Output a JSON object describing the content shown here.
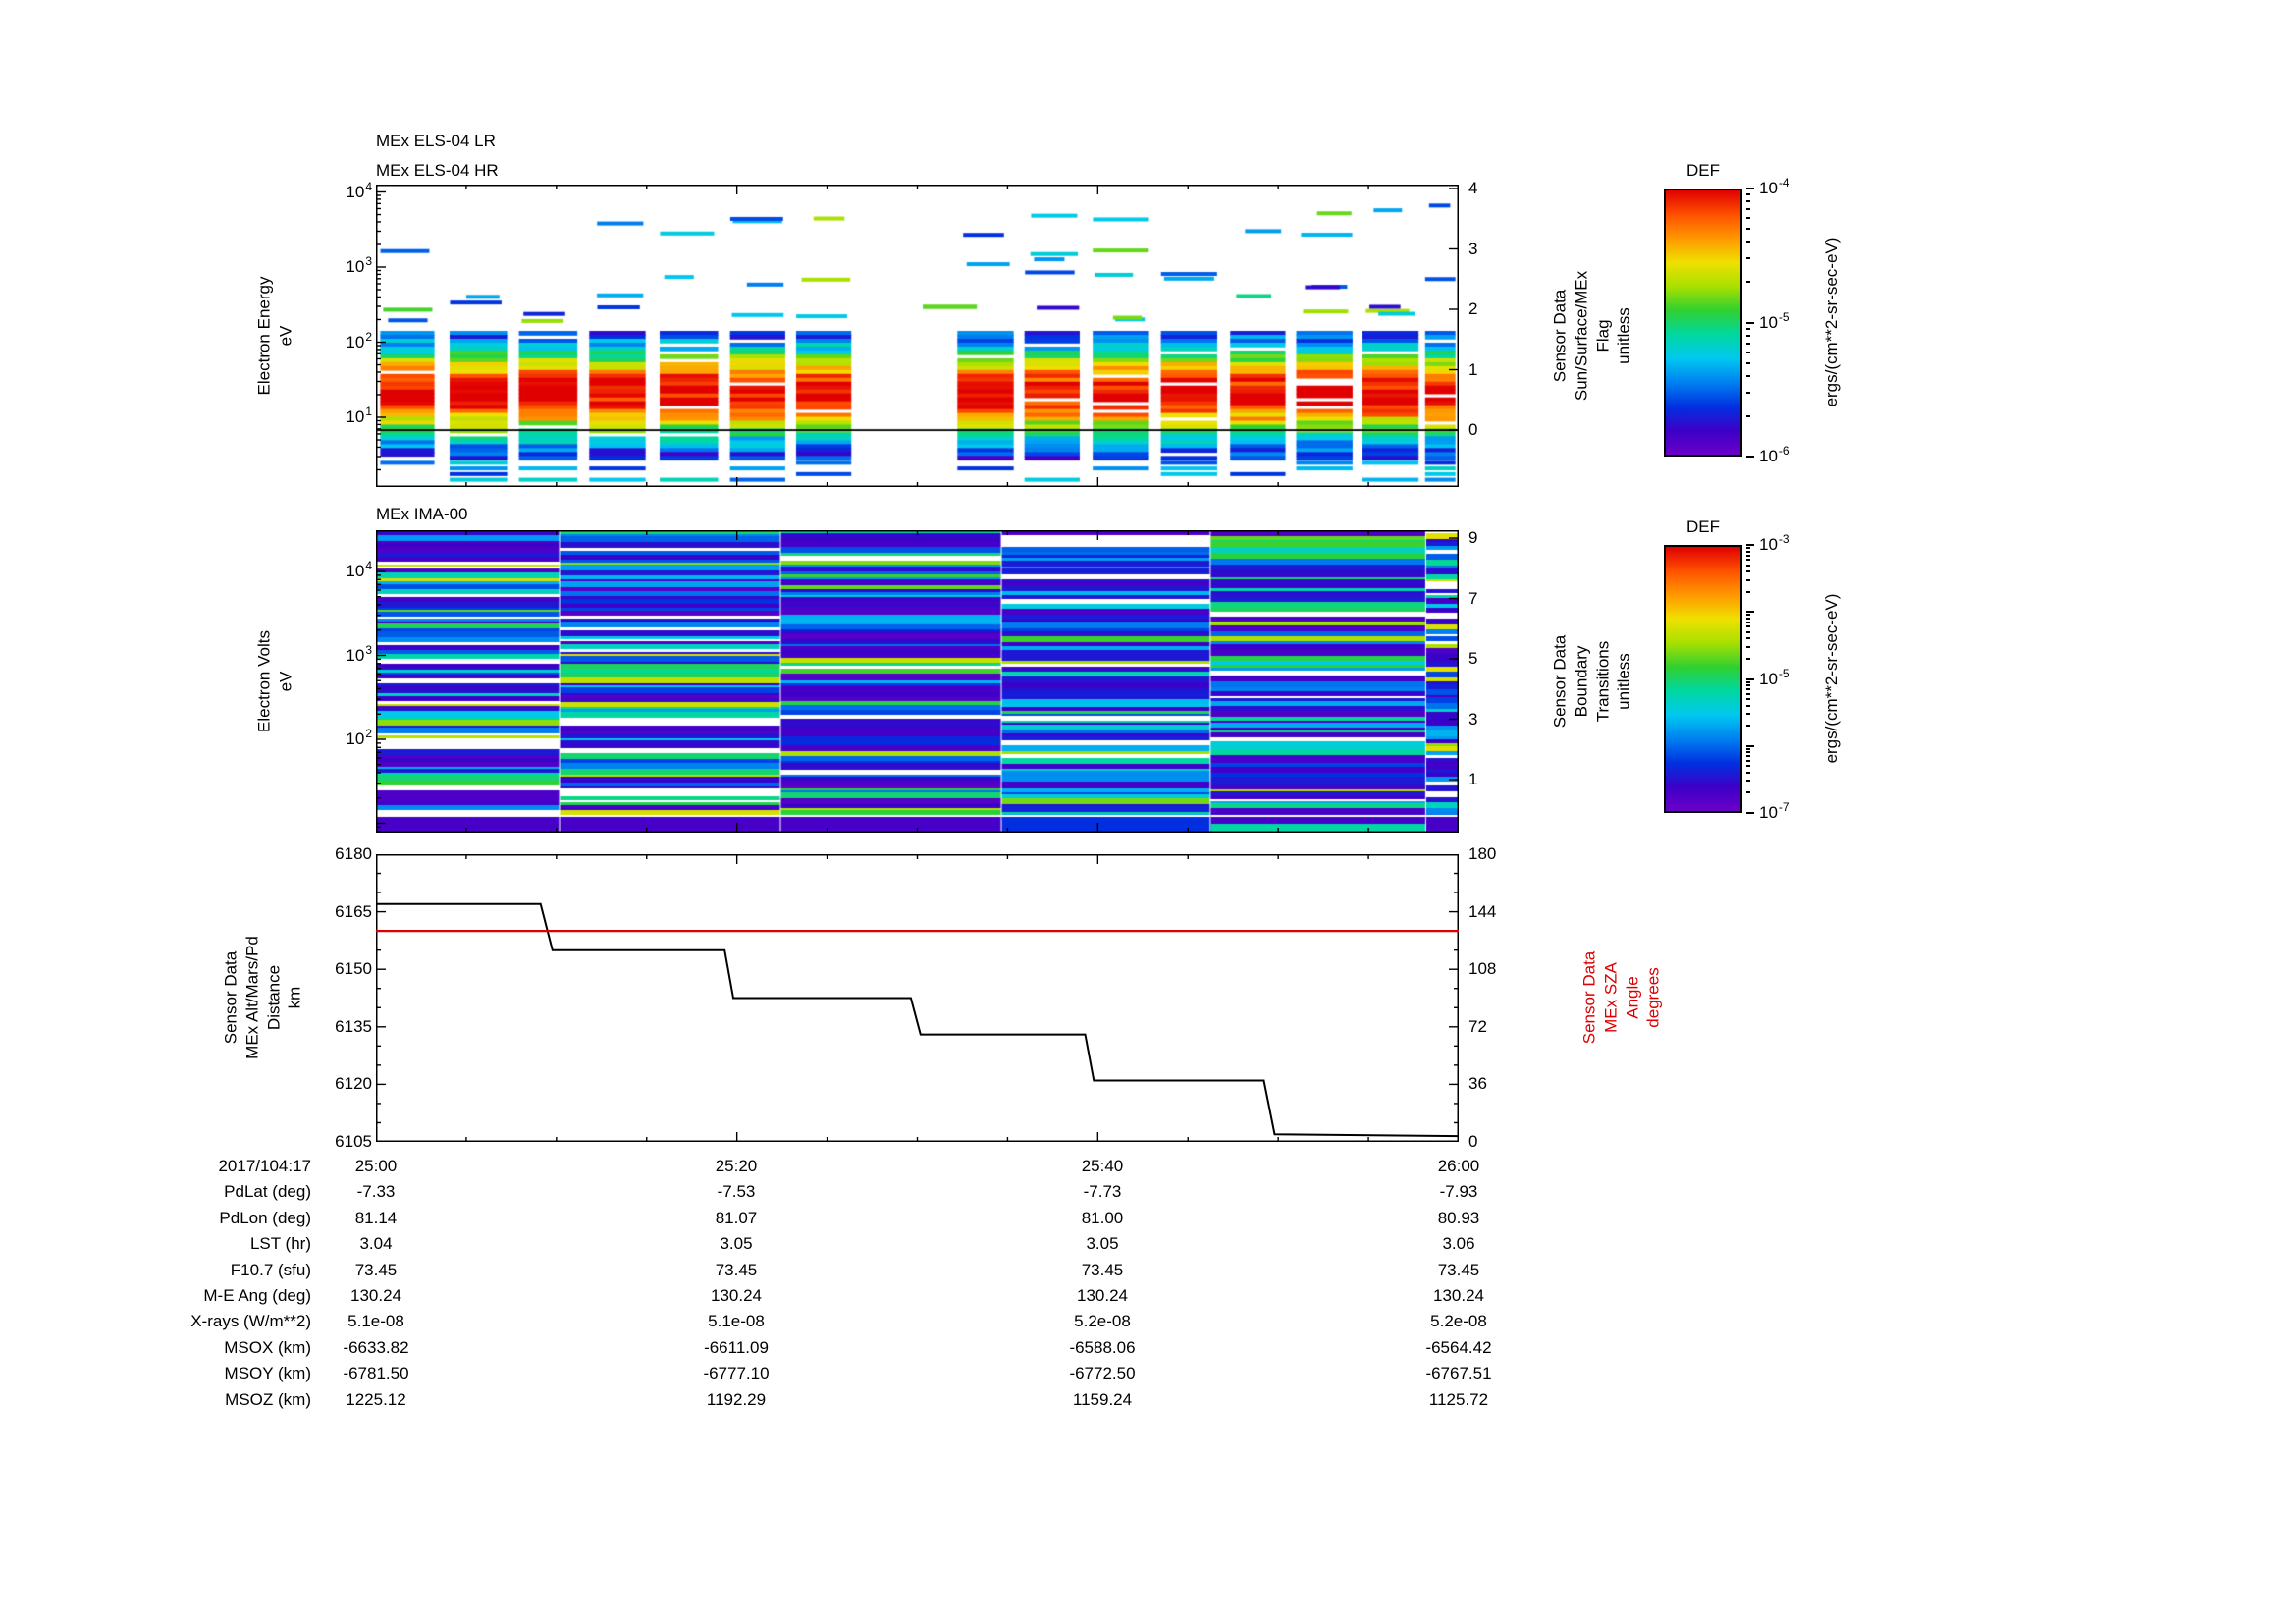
{
  "style": {
    "background": "#ffffff",
    "axis_color": "#000000",
    "sza_color": "#dd0000",
    "colormap_low_to_high": [
      "#6a00c8",
      "#3c00c8",
      "#0030e0",
      "#0080f0",
      "#00c8f0",
      "#00d8a0",
      "#30d030",
      "#a8e000",
      "#f0e000",
      "#ff9800",
      "#ff5000",
      "#e00000"
    ]
  },
  "panels": {
    "els": {
      "titles": [
        "MEx ELS-04 LR",
        "MEx ELS-04 HR"
      ],
      "left_label": "Electron Energy\neV",
      "right_label": "Sensor Data\nSun/Surface/MEx\nFlag\nunitless",
      "left_ticks": [
        "10^4",
        "10^3",
        "10^2",
        "10^1"
      ],
      "right_ticks": [
        "4",
        "3",
        "2",
        "1",
        "0"
      ]
    },
    "ima": {
      "title": "MEx IMA-00",
      "left_label": "Electron Volts\neV",
      "right_label": "Sensor Data\nBoundary\nTransitions\nunitless",
      "left_ticks": [
        "10^4",
        "10^3",
        "10^2"
      ],
      "right_ticks": [
        "9",
        "7",
        "5",
        "3",
        "1"
      ]
    },
    "line": {
      "left_label": "Sensor Data\nMEx Alt/Mars/Pd\nDistance\nkm",
      "right_label": "Sensor Data\nMEx SZA\nAngle\ndegrees",
      "left_ticks": [
        "6180",
        "6165",
        "6150",
        "6135",
        "6120",
        "6105"
      ],
      "right_ticks": [
        "180",
        "144",
        "108",
        "72",
        "36",
        "0"
      ]
    }
  },
  "colorbars": [
    {
      "title": "DEF",
      "ticks": [
        "10^-4",
        "10^-5",
        "10^-6"
      ],
      "units": "ergs/(cm**2-sr-sec-eV)"
    },
    {
      "title": "DEF",
      "ticks": [
        "10^-3",
        "10^-5",
        "10^-7"
      ],
      "units": "ergs/(cm**2-sr-sec-eV)"
    }
  ],
  "table": {
    "rows": [
      {
        "label": "2017/104:17",
        "values": [
          "25:00",
          "25:20",
          "25:40",
          "26:00"
        ]
      },
      {
        "label": "PdLat (deg)",
        "values": [
          "-7.33",
          "-7.53",
          "-7.73",
          "-7.93"
        ]
      },
      {
        "label": "PdLon (deg)",
        "values": [
          "81.14",
          "81.07",
          "81.00",
          "80.93"
        ]
      },
      {
        "label": "LST (hr)",
        "values": [
          "3.04",
          "3.05",
          "3.05",
          "3.06"
        ]
      },
      {
        "label": "F10.7 (sfu)",
        "values": [
          "73.45",
          "73.45",
          "73.45",
          "73.45"
        ]
      },
      {
        "label": "M-E Ang (deg)",
        "values": [
          "130.24",
          "130.24",
          "130.24",
          "130.24"
        ]
      },
      {
        "label": "X-rays (W/m**2)",
        "values": [
          "5.1e-08",
          "5.1e-08",
          "5.2e-08",
          "5.2e-08"
        ]
      },
      {
        "label": "MSOX (km)",
        "values": [
          "-6633.82",
          "-6611.09",
          "-6588.06",
          "-6564.42"
        ]
      },
      {
        "label": "MSOY (km)",
        "values": [
          "-6781.50",
          "-6777.10",
          "-6772.50",
          "-6767.51"
        ]
      },
      {
        "label": "MSOZ (km)",
        "values": [
          "1225.12",
          "1192.29",
          "1159.24",
          "1125.72"
        ]
      }
    ]
  },
  "chart_data": [
    {
      "type": "heatmap",
      "title": "MEx ELS-04 LR / MEx ELS-04 HR",
      "ylabel": "Electron Energy (eV)",
      "y_scale": "log",
      "y_range": [
        1,
        10000
      ],
      "x_ticks": [
        "25:00",
        "25:20",
        "25:40",
        "26:00"
      ],
      "x_span_minutes": 60,
      "colorbar": {
        "title": "DEF",
        "units": "ergs/(cm**2-sr-sec-eV)",
        "min": "1e-6",
        "max": "1e-4"
      },
      "right_axis": {
        "label": "Sensor Data Sun/Surface/MEx Flag (unitless)",
        "range": [
          0,
          4
        ],
        "flag_value": 0
      },
      "burst_intervals_frac": [
        [
          0.004,
          0.054
        ],
        [
          0.068,
          0.122
        ],
        [
          0.132,
          0.186
        ],
        [
          0.197,
          0.249
        ],
        [
          0.262,
          0.316
        ],
        [
          0.327,
          0.378
        ],
        [
          0.388,
          0.439
        ],
        [
          0.537,
          0.589
        ],
        [
          0.599,
          0.65
        ],
        [
          0.662,
          0.714
        ],
        [
          0.725,
          0.777
        ],
        [
          0.789,
          0.84
        ],
        [
          0.85,
          0.902
        ],
        [
          0.911,
          0.963
        ],
        [
          0.969,
          0.997
        ]
      ],
      "burst_energy_range_log10": [
        0.45,
        2.15
      ],
      "peak_energy_log10": 1.35
    },
    {
      "type": "heatmap",
      "title": "MEx IMA-00",
      "ylabel": "Electron Volts (eV)",
      "y_scale": "log",
      "y_range": [
        8,
        30000
      ],
      "x_ticks": [
        "25:00",
        "25:20",
        "25:40",
        "26:00"
      ],
      "colorbar": {
        "title": "DEF",
        "units": "ergs/(cm**2-sr-sec-eV)",
        "min": "1e-7",
        "max": "1e-3"
      },
      "right_axis": {
        "label": "Sensor Data Boundary Transitions (unitless)",
        "range": [
          0,
          9
        ]
      },
      "block_edges_frac": [
        0,
        0.17,
        0.374,
        0.578,
        0.771,
        0.97,
        1.0
      ],
      "block_brightness": [
        0.12,
        0.05,
        0.0,
        0.25,
        0.15,
        0.2
      ]
    },
    {
      "type": "line",
      "x_ticks": [
        "25:00",
        "25:20",
        "25:40",
        "26:00"
      ],
      "left_axis": {
        "label": "Sensor Data MEx Alt/Mars/Pd Distance (km)",
        "range": [
          6105,
          6180
        ]
      },
      "right_axis": {
        "label": "Sensor Data MEx SZA Angle (degrees)",
        "range": [
          0,
          180
        ]
      },
      "series": [
        {
          "name": "MEx Alt/Mars/Pd Distance (km)",
          "axis": "left",
          "color": "#000000",
          "points_frac_km": [
            [
              0,
              6167
            ],
            [
              0.152,
              6167
            ],
            [
              0.163,
              6155
            ],
            [
              0.322,
              6155
            ],
            [
              0.33,
              6142.5
            ],
            [
              0.494,
              6142.5
            ],
            [
              0.503,
              6133
            ],
            [
              0.655,
              6133
            ],
            [
              0.663,
              6121
            ],
            [
              0.82,
              6121
            ],
            [
              0.83,
              6107
            ],
            [
              1.0,
              6106.5
            ]
          ]
        },
        {
          "name": "MEx SZA Angle (degrees)",
          "axis": "right",
          "color": "#dd0000",
          "constant_value": 132
        }
      ]
    }
  ]
}
